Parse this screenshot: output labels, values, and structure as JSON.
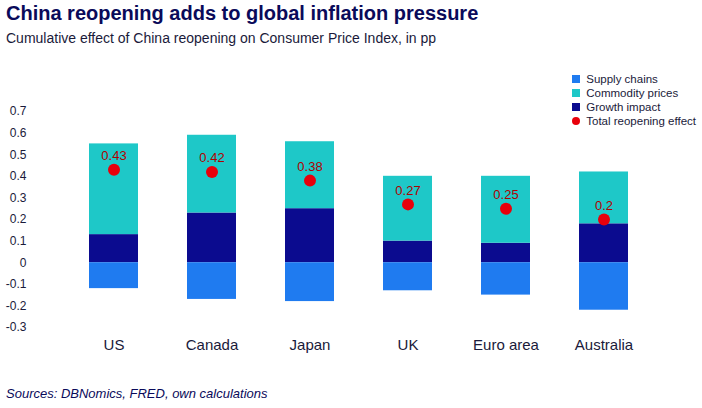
{
  "chart_data": {
    "type": "bar",
    "title": "China reopening adds to global inflation pressure",
    "subtitle": "Cumulative effect of China reopening on Consumer Price Index, in pp",
    "caption": "Sources: DBNomics, FRED, own calculations",
    "categories": [
      "US",
      "Canada",
      "Japan",
      "UK",
      "Euro area",
      "Australia"
    ],
    "series": [
      {
        "name": "Supply chains",
        "color": "#1f7bf0",
        "values": [
          -0.12,
          -0.17,
          -0.18,
          -0.13,
          -0.15,
          -0.22
        ]
      },
      {
        "name": "Commodity prices",
        "color": "#1ec8c8",
        "values": [
          0.42,
          0.36,
          0.31,
          0.3,
          0.31,
          0.24
        ]
      },
      {
        "name": "Growth impact",
        "color": "#0b0b8f",
        "values": [
          0.13,
          0.23,
          0.25,
          0.1,
          0.09,
          0.18
        ]
      },
      {
        "name": "Total reopening effect",
        "type": "scatter",
        "marker": "circle",
        "color": "#e8000b",
        "data_labels": true,
        "values": [
          0.43,
          0.42,
          0.38,
          0.27,
          0.25,
          0.2
        ]
      }
    ],
    "stacked": true,
    "ylim": [
      -0.3,
      0.7
    ],
    "yticks": [
      -0.3,
      -0.2,
      -0.1,
      0,
      0.1,
      0.2,
      0.3,
      0.4,
      0.5,
      0.6,
      0.7
    ],
    "grid": false,
    "legend": "top-right"
  }
}
